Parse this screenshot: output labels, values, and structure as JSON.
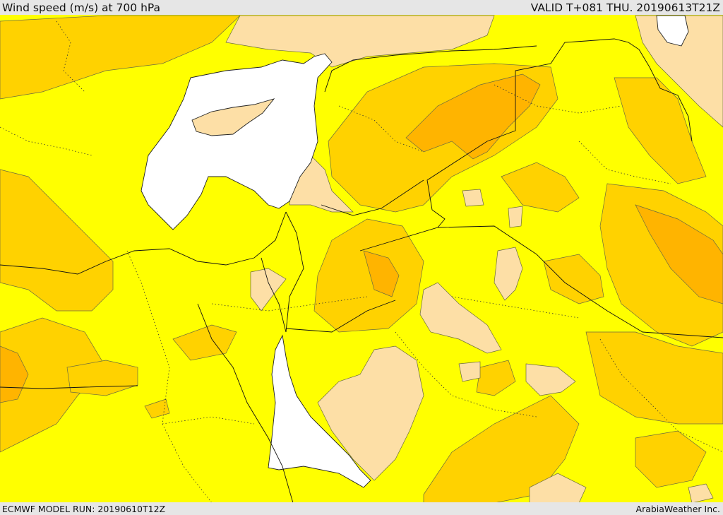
{
  "header": {
    "title": "Wind speed (m/s) at 700 hPa",
    "valid": "VALID T+081 THU. 20190613T21Z"
  },
  "footer": {
    "model_run": "ECMWF MODEL RUN: 20190610T12Z",
    "credit": "ArabiaWeather Inc."
  },
  "colors": {
    "base_yellow": "#ffff00",
    "light_orange": "#ffd200",
    "orange": "#ffb400",
    "dark_orange": "#ff9600",
    "peach": "#fddfa6",
    "masked_sea": "#ffffff",
    "border_line": "#000000"
  }
}
